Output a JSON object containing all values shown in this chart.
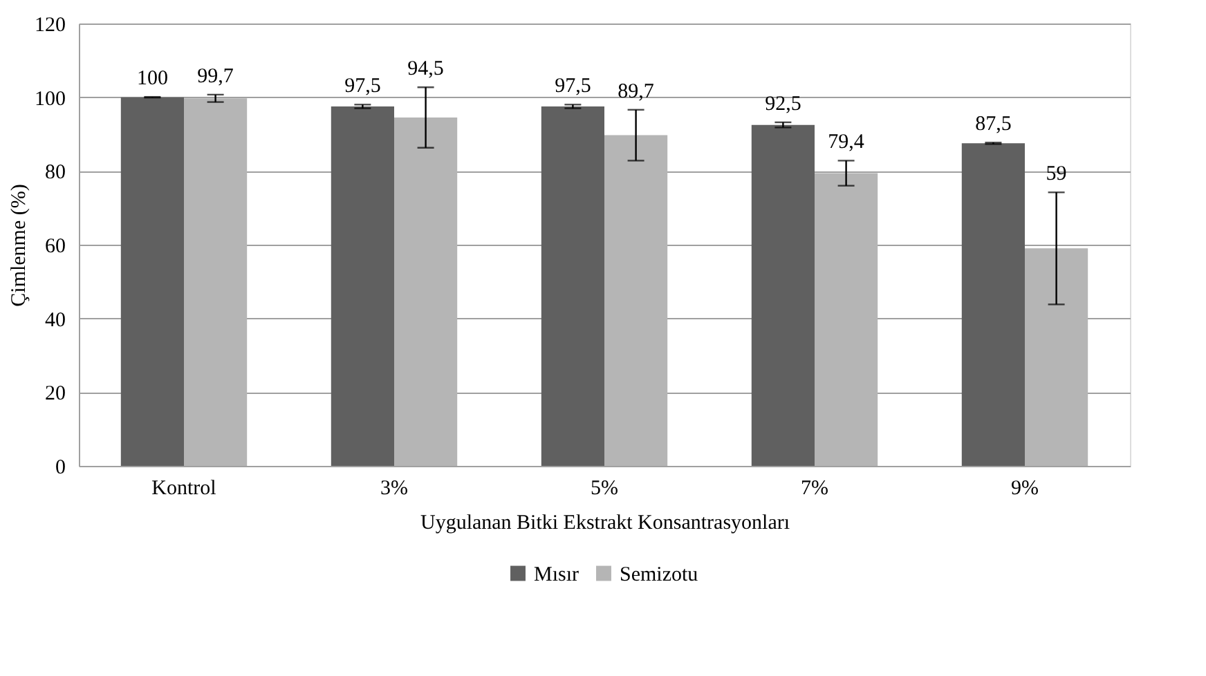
{
  "chart_data": {
    "type": "bar",
    "xlabel": "Uygulanan  Bitki  Ekstrakt  Konsantrasyonları",
    "ylabel": "Çimlenme (%)",
    "categories": [
      "Kontrol",
      "3%",
      "5%",
      "7%",
      "9%"
    ],
    "series": [
      {
        "name": "Mısır",
        "color": "#606060",
        "values": [
          100,
          97.5,
          97.5,
          92.5,
          87.5
        ],
        "errors": [
          0.1,
          0.5,
          0.5,
          0.7,
          0.2
        ],
        "value_labels": [
          "100",
          "97,5",
          "97,5",
          "92,5",
          "87,5"
        ]
      },
      {
        "name": "Semizotu",
        "color": "#b5b5b5",
        "values": [
          99.7,
          94.5,
          89.7,
          79.4,
          59
        ],
        "errors": [
          1,
          8.2,
          6.9,
          3.4,
          15.2
        ],
        "value_labels": [
          "99,7",
          "94,5",
          "89,7",
          "79,4",
          "59"
        ]
      }
    ],
    "ylim": [
      0,
      120
    ],
    "yticks": [
      0,
      20,
      40,
      60,
      80,
      100,
      120
    ],
    "grid": "y",
    "legend": "bottom"
  }
}
